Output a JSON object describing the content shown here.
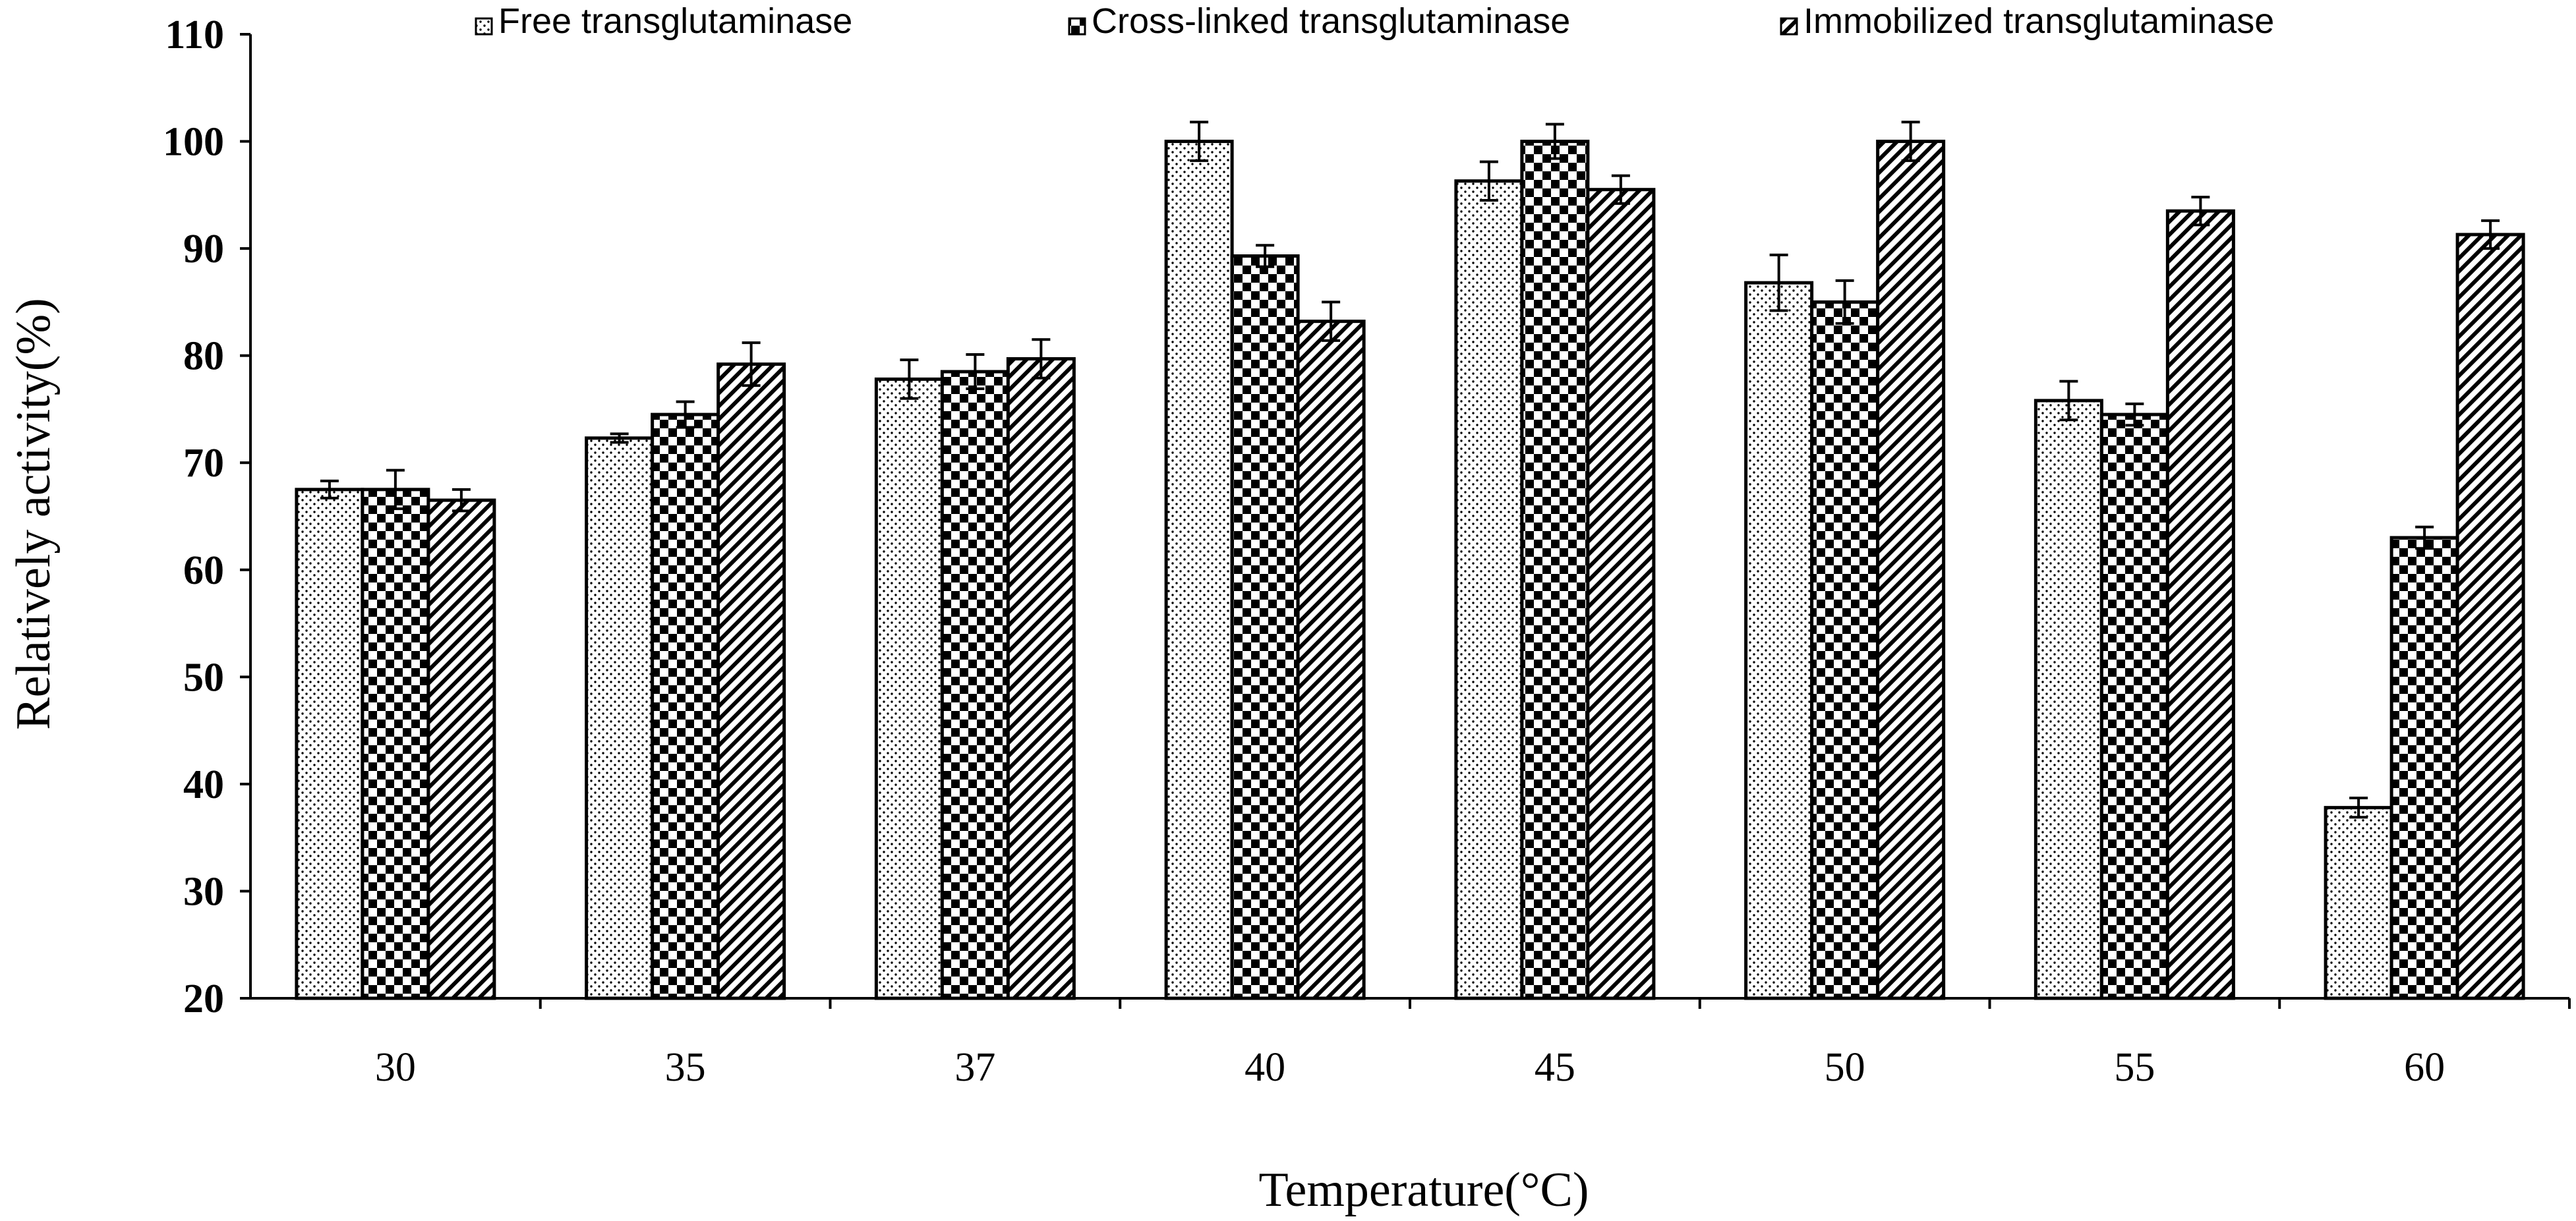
{
  "chart_data": {
    "type": "bar",
    "title": "",
    "xlabel": "Temperature(°C)",
    "ylabel": "Relatively activity(%)",
    "ylim": [
      20,
      110
    ],
    "yticks": [
      20,
      30,
      40,
      50,
      60,
      70,
      80,
      90,
      100,
      110
    ],
    "grid": false,
    "legend_position": "top",
    "categories": [
      "30",
      "35",
      "37",
      "40",
      "45",
      "50",
      "55",
      "60"
    ],
    "series": [
      {
        "name": "Free transglutaminase",
        "pattern": "dots",
        "values": [
          67.5,
          72.3,
          77.8,
          100.0,
          96.3,
          86.8,
          75.8,
          37.8
        ],
        "errors": [
          0.8,
          0.4,
          1.8,
          1.8,
          1.8,
          2.6,
          1.8,
          0.9
        ]
      },
      {
        "name": "Cross-linked transglutaminase",
        "pattern": "checker",
        "values": [
          67.5,
          74.5,
          78.5,
          89.3,
          100.0,
          85.0,
          74.5,
          63.0
        ],
        "errors": [
          1.8,
          1.2,
          1.6,
          1.0,
          1.6,
          2.0,
          1.0,
          1.0
        ]
      },
      {
        "name": "Immobilized transglutaminase",
        "pattern": "diagonal",
        "values": [
          66.5,
          79.2,
          79.7,
          83.2,
          95.5,
          100.0,
          93.5,
          91.3
        ],
        "errors": [
          1.0,
          2.0,
          1.8,
          1.8,
          1.3,
          1.8,
          1.3,
          1.3
        ]
      }
    ]
  }
}
